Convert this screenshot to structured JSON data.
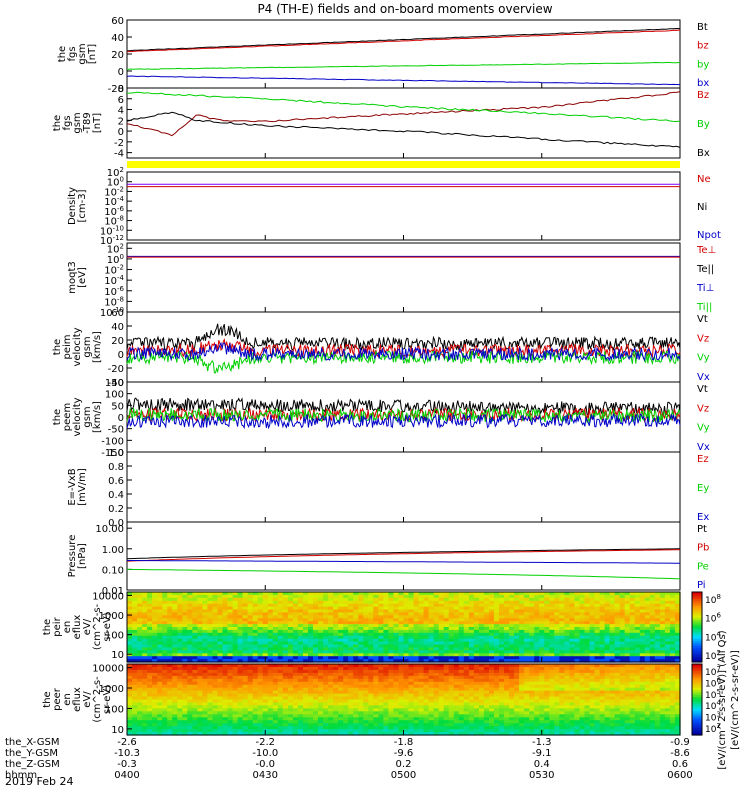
{
  "title": "P4 (TH-E) fields and on-board moments overview",
  "date_label": "2019 Feb 24",
  "xaxis": {
    "rows": [
      {
        "label": "the_X-GSM",
        "values": [
          "-2.6",
          "-2.2",
          "-1.8",
          "-1.3",
          "-0.9"
        ]
      },
      {
        "label": "the_Y-GSM",
        "values": [
          "-10.3",
          "-10.0",
          "-9.6",
          "-9.1",
          "-8.6"
        ]
      },
      {
        "label": "the_Z-GSM",
        "values": [
          "-0.3",
          "-0.0",
          "0.2",
          "0.4",
          "0.6"
        ]
      },
      {
        "label": "hhmm",
        "values": [
          "0400",
          "0430",
          "0500",
          "0530",
          "0600"
        ]
      }
    ]
  },
  "colors": {
    "black": "#000000",
    "red": "#d40000",
    "green": "#00d000",
    "blue": "#0000c8",
    "yellow": "#ffff00",
    "purple": "#7a00ff"
  },
  "colorbar_title": "[eV/(cm^2-s-sr-eV)] (All Qs)",
  "colorbar_title_2": "[eV/(cm^2-s-sr-eV)]",
  "chart_data": [
    {
      "type": "line",
      "id": "fgs-gsm",
      "ylabel": [
        "the",
        "fgs",
        "gsm",
        "[nT]"
      ],
      "ylim": [
        -20,
        60
      ],
      "yticks": [
        "60",
        "40",
        "20",
        "0",
        "-20"
      ],
      "legend": [
        "Bt",
        "bz",
        "by",
        "bx"
      ],
      "series": [
        {
          "name": "Bt",
          "color": "#000000",
          "x": [
            "0400",
            "0600"
          ],
          "values": [
            24,
            50
          ]
        },
        {
          "name": "bz",
          "color": "#d40000",
          "x": [
            "0400",
            "0600"
          ],
          "values": [
            23,
            48
          ]
        },
        {
          "name": "by",
          "color": "#00d000",
          "x": [
            "0400",
            "0600"
          ],
          "values": [
            2,
            10
          ]
        },
        {
          "name": "bx",
          "color": "#0000c8",
          "x": [
            "0400",
            "0600"
          ],
          "values": [
            -6,
            -16
          ]
        }
      ]
    },
    {
      "type": "line",
      "id": "fgs-gsm-detrended",
      "ylabel": [
        "the",
        "fgs",
        "gsm",
        "-T89",
        "[nT]"
      ],
      "ylim": [
        -5,
        8
      ],
      "yticks": [
        "8",
        "6",
        "4",
        "2",
        "0",
        "-2",
        "-4"
      ],
      "legend": [
        "Bz",
        "By",
        "Bx"
      ],
      "series": [
        {
          "name": "Bz",
          "color": "#8b0000",
          "x": [
            "0400",
            "0410",
            "0415",
            "0420",
            "0430",
            "0500",
            "0530",
            "0600"
          ],
          "values": [
            1.5,
            -0.8,
            3.0,
            2.0,
            1.8,
            3.2,
            4.4,
            7.2
          ]
        },
        {
          "name": "By",
          "color": "#00d000",
          "x": [
            "0400",
            "0410",
            "0430",
            "0500",
            "0530",
            "0600"
          ],
          "values": [
            7.2,
            6.8,
            6.0,
            4.5,
            3.3,
            1.8
          ]
        },
        {
          "name": "Bx",
          "color": "#000000",
          "x": [
            "0400",
            "0410",
            "0415",
            "0430",
            "0500",
            "0530",
            "0600"
          ],
          "values": [
            2.0,
            3.5,
            2.0,
            1.0,
            0.0,
            -1.5,
            -3.0
          ]
        }
      ]
    },
    {
      "type": "line",
      "id": "density",
      "ylabel": [
        "Density",
        "[cm-3]"
      ],
      "ylim": [
        -12,
        2
      ],
      "log": true,
      "yticks": [
        "10^2",
        "10^0",
        "10^-2",
        "10^-4",
        "10^-6",
        "10^-8",
        "10^-10",
        "10^-12"
      ],
      "legend": [
        "Ne",
        "Ni",
        "Npot"
      ],
      "series": [
        {
          "name": "Ne",
          "color": "#d40000",
          "x": [
            "0400",
            "0600"
          ],
          "values": [
            0.1,
            0.1
          ]
        },
        {
          "name": "Npot",
          "color": "#7a00ff",
          "x": [
            "0400",
            "0600"
          ],
          "values": [
            0.3,
            0.3
          ]
        }
      ]
    },
    {
      "type": "line",
      "id": "temperature",
      "ylabel": [
        "moqt3",
        "[eV]"
      ],
      "ylim": [
        -10,
        3
      ],
      "log": true,
      "yticks": [
        "10^2",
        "10^0",
        "10^-2",
        "10^-4",
        "10^-6",
        "10^-8",
        "10^-10"
      ],
      "legend": [
        "Te⊥",
        "Te||",
        "Ti⊥",
        "Ti||"
      ],
      "series": [
        {
          "name": "Ti⊥",
          "color": "#0000c8",
          "x": [
            "0400",
            "0600"
          ],
          "values": [
            3,
            3
          ]
        },
        {
          "name": "Te⊥",
          "color": "#d40000",
          "x": [
            "0400",
            "0600"
          ],
          "values": [
            2.2,
            2.2
          ]
        }
      ]
    },
    {
      "type": "line",
      "id": "peim-velocity",
      "ylabel": [
        "the",
        "peim",
        "velocity",
        "gsm",
        "[km/s]"
      ],
      "ylim": [
        -40,
        60
      ],
      "yticks": [
        "60",
        "40",
        "20",
        "0",
        "-20",
        "-40"
      ],
      "legend": [
        "Vt",
        "Vz",
        "Vy",
        "Vx"
      ],
      "series": [
        {
          "name": "Vt",
          "color": "#000000",
          "x": [
            "0400",
            "0600"
          ],
          "values": [
            15,
            15
          ]
        },
        {
          "name": "Vz",
          "color": "#d40000",
          "x": [
            "0400",
            "0600"
          ],
          "values": [
            5,
            5
          ]
        },
        {
          "name": "Vy",
          "color": "#00d000",
          "x": [
            "0400",
            "0600"
          ],
          "values": [
            -5,
            -5
          ]
        },
        {
          "name": "Vx",
          "color": "#0000c8",
          "x": [
            "0400",
            "0600"
          ],
          "values": [
            0,
            0
          ]
        }
      ]
    },
    {
      "type": "line",
      "id": "peem-velocity",
      "ylabel": [
        "the",
        "peem",
        "velocity",
        "gsm",
        "[km/s]"
      ],
      "ylim": [
        -150,
        150
      ],
      "yticks": [
        "150",
        "100",
        "50",
        "0",
        "-50",
        "-100",
        "-150"
      ],
      "legend": [
        "Vt",
        "Vz",
        "Vy",
        "Vx"
      ],
      "series": [
        {
          "name": "Vt",
          "color": "#000000",
          "x": [
            "0400",
            "0600"
          ],
          "values": [
            55,
            35
          ]
        },
        {
          "name": "Vz",
          "color": "#d40000",
          "x": [
            "0400",
            "0600"
          ],
          "values": [
            10,
            10
          ]
        },
        {
          "name": "Vy",
          "color": "#00d000",
          "x": [
            "0400",
            "0600"
          ],
          "values": [
            10,
            5
          ]
        },
        {
          "name": "Vx",
          "color": "#0000c8",
          "x": [
            "0400",
            "0600"
          ],
          "values": [
            -20,
            -15
          ]
        }
      ]
    },
    {
      "type": "line",
      "id": "efield",
      "ylabel": [
        "E=-VxB",
        "[mV/m]"
      ],
      "ylim": [
        0,
        1
      ],
      "yticks": [
        "1.0",
        "0.8",
        "0.6",
        "0.4",
        "0.2",
        "0.0"
      ],
      "legend": [
        "Ez",
        "Ey",
        "Ex"
      ],
      "series": []
    },
    {
      "type": "line",
      "id": "pressure",
      "ylabel": [
        "Pressure",
        "[nPa]"
      ],
      "ylim": [
        -2,
        1.3
      ],
      "log": true,
      "yticks": [
        "10.00",
        "1.00",
        "0.10",
        "0.01"
      ],
      "legend": [
        "Pt",
        "Pb",
        "Pe",
        "Pi"
      ],
      "series": [
        {
          "name": "Pt",
          "color": "#000000",
          "x": [
            "0400",
            "0600"
          ],
          "values": [
            0.33,
            1.0
          ]
        },
        {
          "name": "Pb",
          "color": "#d40000",
          "x": [
            "0400",
            "0600"
          ],
          "values": [
            0.25,
            0.9
          ]
        },
        {
          "name": "Pe",
          "color": "#0000c8",
          "x": [
            "0400",
            "0600"
          ],
          "values": [
            0.27,
            0.2
          ]
        },
        {
          "name": "Pi",
          "color": "#00d000",
          "x": [
            "0400",
            "0600"
          ],
          "values": [
            0.1,
            0.035
          ]
        }
      ]
    },
    {
      "type": "heatmap",
      "id": "peir-eflux",
      "ylabel": [
        "the",
        "peir",
        "en",
        "eflux",
        "eV/",
        "(cm^2-s-",
        "sr-eV)"
      ],
      "ylim": [
        4,
        15000
      ],
      "log": true,
      "yticks": [
        "10000",
        "1000",
        "100",
        "10"
      ],
      "colorbar_ticks": [
        "10^8",
        "10^6",
        "10^4",
        "10^2"
      ]
    },
    {
      "type": "heatmap",
      "id": "peer-eflux",
      "ylabel": [
        "the",
        "peer",
        "en",
        "eflux",
        "eV/",
        "(cm^2-s-",
        "sr-eV)"
      ],
      "ylim": [
        5,
        15000
      ],
      "log": true,
      "yticks": [
        "10000",
        "1000",
        "100",
        "10"
      ],
      "colorbar_ticks": [
        "10^7",
        "10^6",
        "10^5",
        "10^4",
        "10^3",
        "10^2"
      ]
    }
  ]
}
